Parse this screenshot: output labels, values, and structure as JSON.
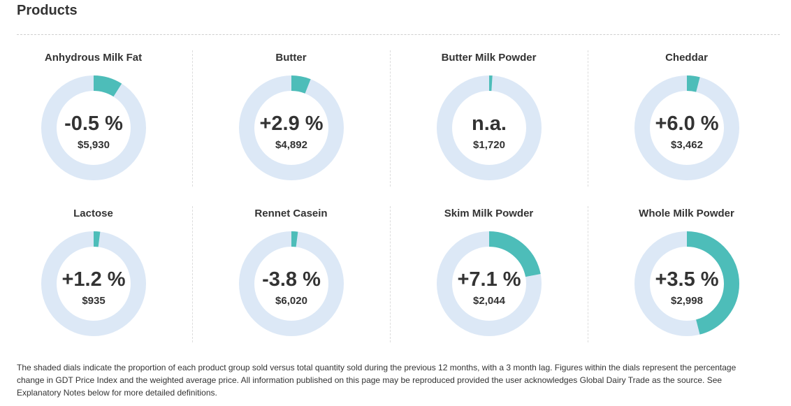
{
  "page": {
    "title": "Products"
  },
  "colors": {
    "track": "#dce8f6",
    "fill": "#4dbdb9",
    "text": "#333333"
  },
  "products": [
    {
      "name": "Anhydrous Milk Fat",
      "change": "-0.5 %",
      "price": "$5,930",
      "share": 0.09
    },
    {
      "name": "Butter",
      "change": "+2.9 %",
      "price": "$4,892",
      "share": 0.06
    },
    {
      "name": "Butter Milk Powder",
      "change": "n.a.",
      "price": "$1,720",
      "share": 0.01
    },
    {
      "name": "Cheddar",
      "change": "+6.0 %",
      "price": "$3,462",
      "share": 0.04
    },
    {
      "name": "Lactose",
      "change": "+1.2 %",
      "price": "$935",
      "share": 0.02
    },
    {
      "name": "Rennet Casein",
      "change": "-3.8 %",
      "price": "$6,020",
      "share": 0.02
    },
    {
      "name": "Skim Milk Powder",
      "change": "+7.1 %",
      "price": "$2,044",
      "share": 0.22
    },
    {
      "name": "Whole Milk Powder",
      "change": "+3.5 %",
      "price": "$2,998",
      "share": 0.46
    }
  ],
  "footnote": "The shaded dials indicate the proportion of each product group sold versus total quantity sold during the previous 12 months, with a 3 month lag. Figures within the dials represent the percentage change in GDT Price Index and the weighted average price. All information published on this page may be reproduced provided the user acknowledges Global Dairy Trade as the source. See Explanatory Notes below for more detailed definitions."
}
